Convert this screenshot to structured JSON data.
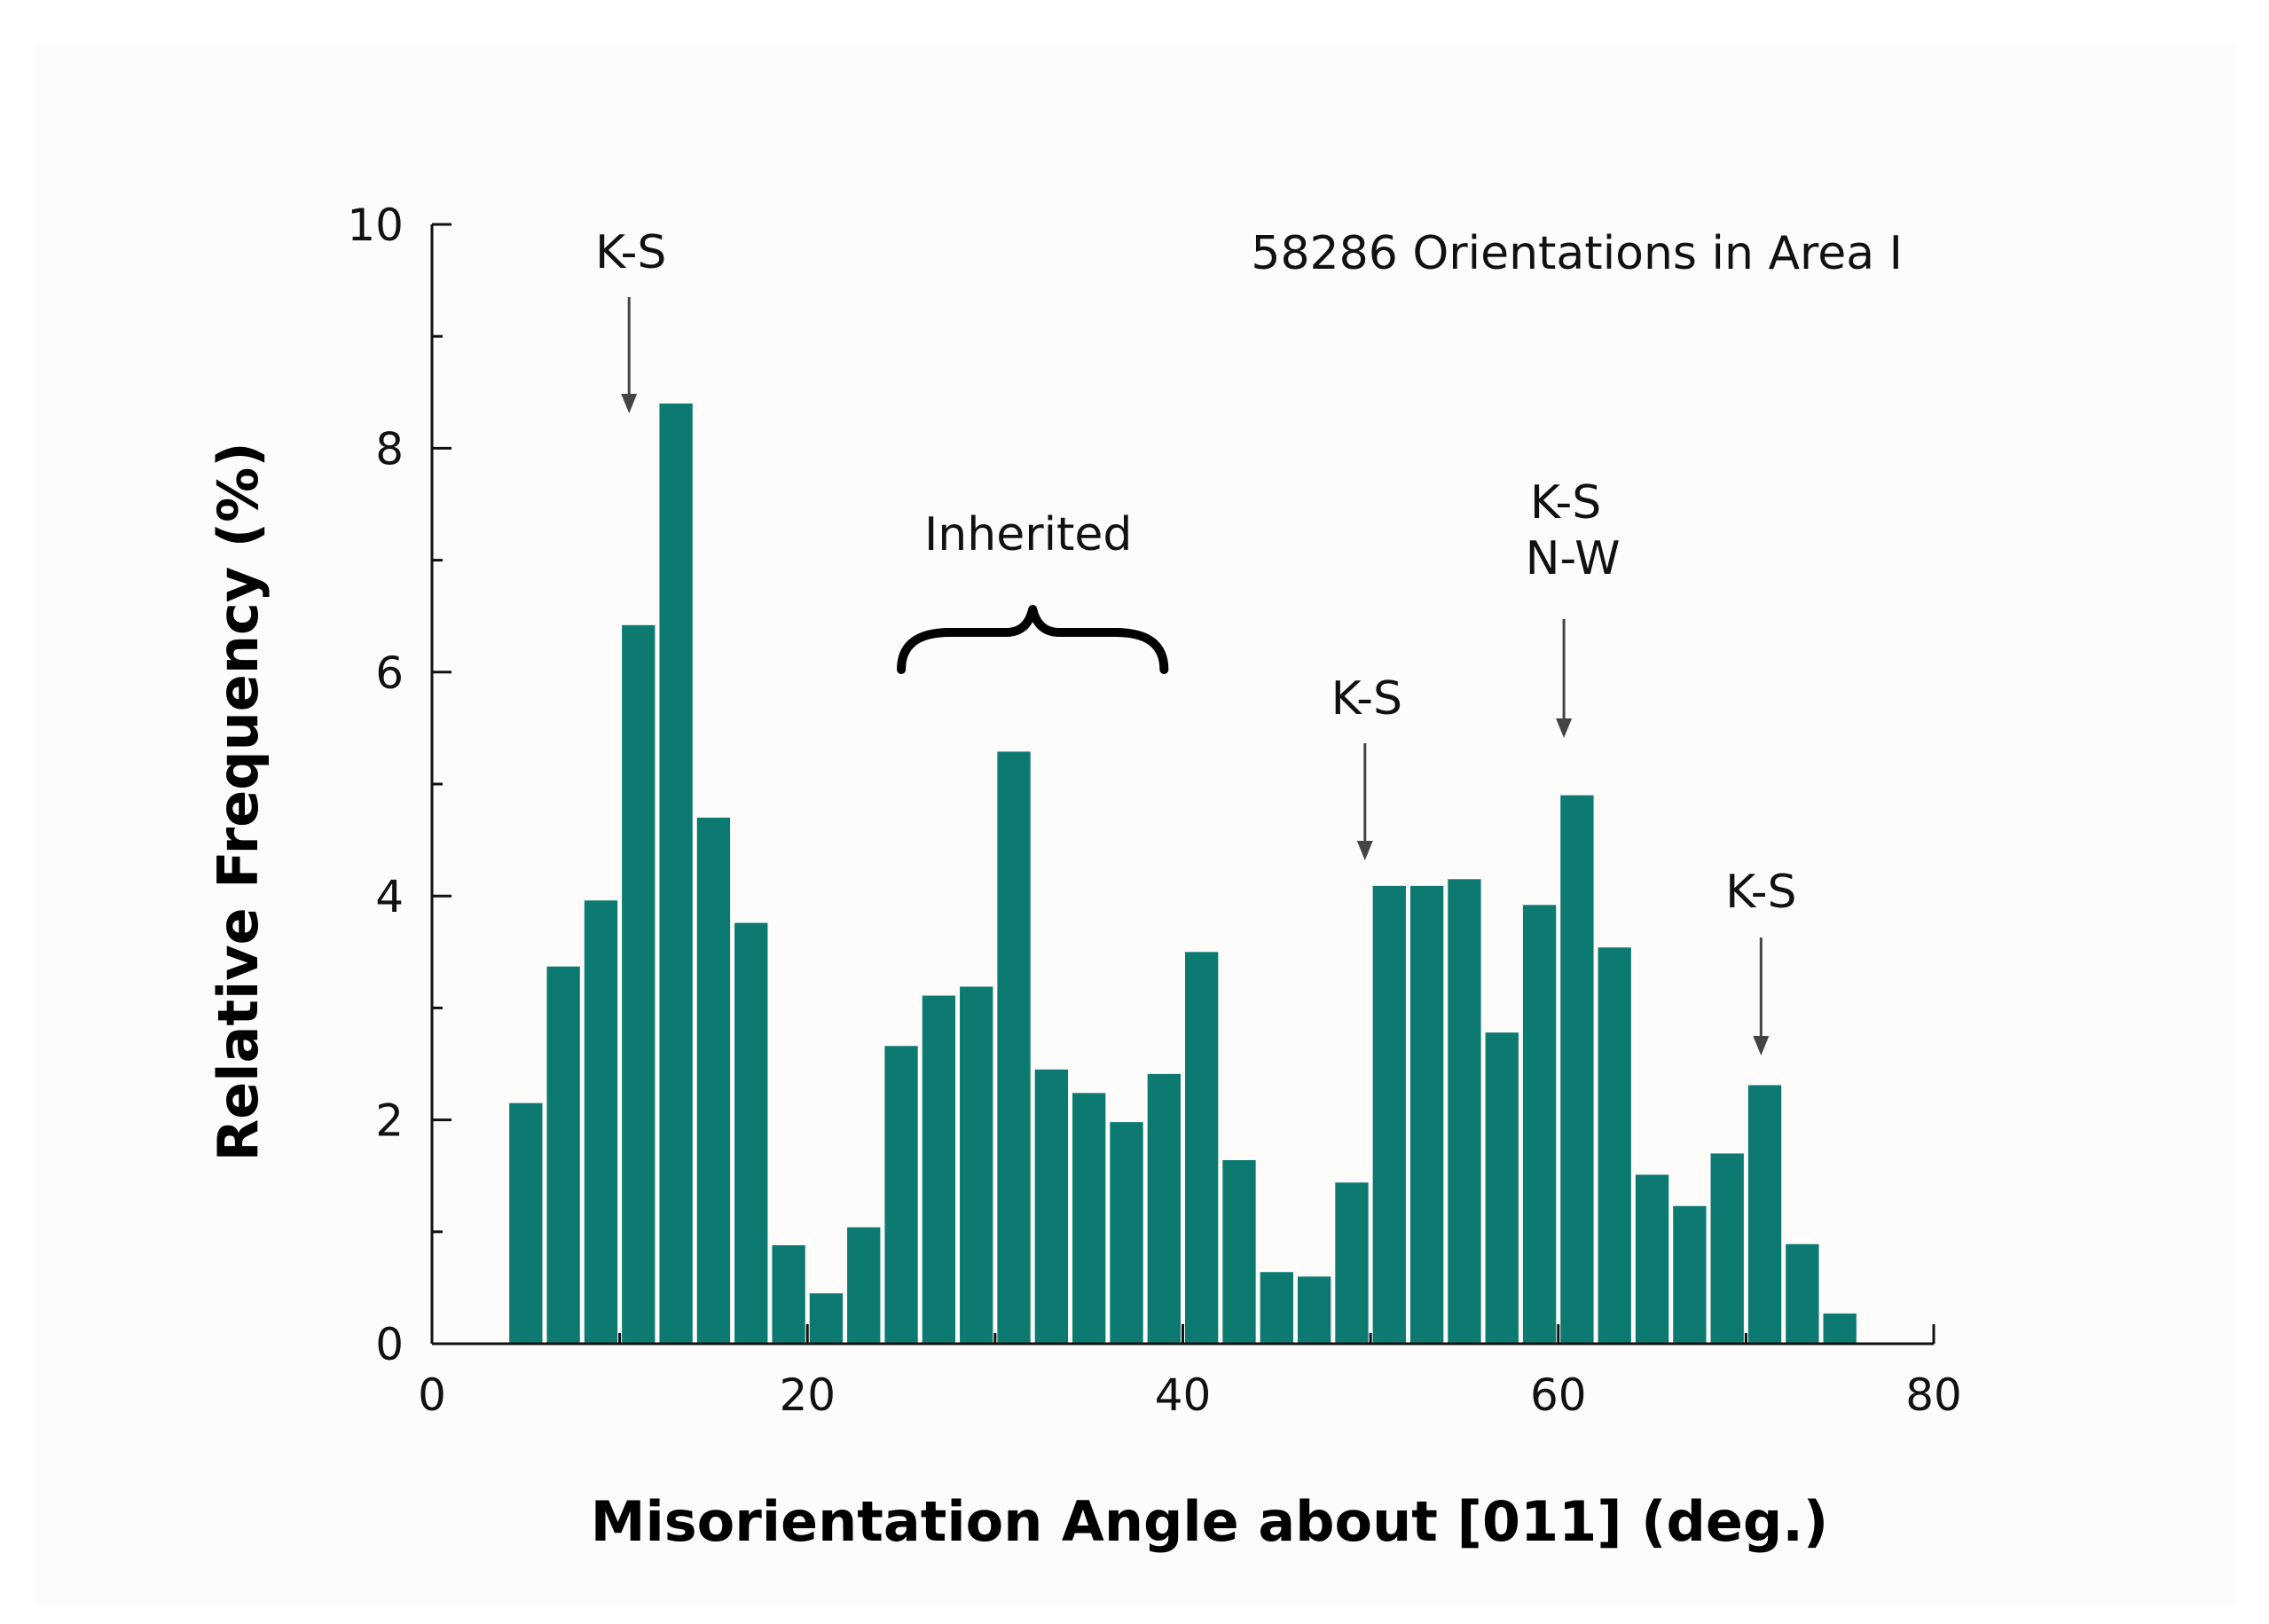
{
  "chart_data": {
    "type": "bar",
    "xlabel": "Misorientation Angle about [011] (deg.)",
    "ylabel": "Relative Frequency (%)",
    "xlim": [
      0,
      80
    ],
    "ylim": [
      0,
      10
    ],
    "x_ticks": [
      "0",
      "20",
      "40",
      "60",
      "80"
    ],
    "y_ticks": [
      "0",
      "2",
      "4",
      "6",
      "8",
      "10"
    ],
    "bin_width": 2,
    "bins": [
      {
        "x": 5,
        "value": 2.15
      },
      {
        "x": 7,
        "value": 3.37
      },
      {
        "x": 9,
        "value": 3.96
      },
      {
        "x": 11,
        "value": 6.42
      },
      {
        "x": 13,
        "value": 8.4
      },
      {
        "x": 15,
        "value": 4.7
      },
      {
        "x": 17,
        "value": 3.76
      },
      {
        "x": 19,
        "value": 0.88
      },
      {
        "x": 21,
        "value": 0.45
      },
      {
        "x": 23,
        "value": 1.04
      },
      {
        "x": 25,
        "value": 2.66
      },
      {
        "x": 27,
        "value": 3.11
      },
      {
        "x": 29,
        "value": 3.19
      },
      {
        "x": 31,
        "value": 5.29
      },
      {
        "x": 33,
        "value": 2.45
      },
      {
        "x": 35,
        "value": 2.24
      },
      {
        "x": 37,
        "value": 1.98
      },
      {
        "x": 39,
        "value": 2.41
      },
      {
        "x": 41,
        "value": 3.5
      },
      {
        "x": 43,
        "value": 1.64
      },
      {
        "x": 45,
        "value": 0.64
      },
      {
        "x": 47,
        "value": 0.6
      },
      {
        "x": 49,
        "value": 1.44
      },
      {
        "x": 51,
        "value": 4.09
      },
      {
        "x": 53,
        "value": 4.09
      },
      {
        "x": 55,
        "value": 4.15
      },
      {
        "x": 57,
        "value": 2.78
      },
      {
        "x": 59,
        "value": 3.92
      },
      {
        "x": 61,
        "value": 4.9
      },
      {
        "x": 63,
        "value": 3.54
      },
      {
        "x": 65,
        "value": 1.51
      },
      {
        "x": 67,
        "value": 1.23
      },
      {
        "x": 69,
        "value": 1.7
      },
      {
        "x": 71,
        "value": 2.31
      },
      {
        "x": 73,
        "value": 0.89
      },
      {
        "x": 75,
        "value": 0.27
      }
    ],
    "bar_color": "#0d7a72",
    "annotations": {
      "count_label": "58286 Orientations in Area I",
      "ks_1": {
        "label": "K-S",
        "angle": 10.5
      },
      "inherited": {
        "label": "Inherited",
        "range": [
          25,
          39
        ]
      },
      "ks_2": {
        "label": "K-S",
        "angle": 49.7
      },
      "ks_nw": {
        "label_1": "K-S",
        "label_2": "N-W",
        "angle": 60.3
      },
      "ks_3": {
        "label": "K-S",
        "angle": 70.8
      }
    }
  }
}
